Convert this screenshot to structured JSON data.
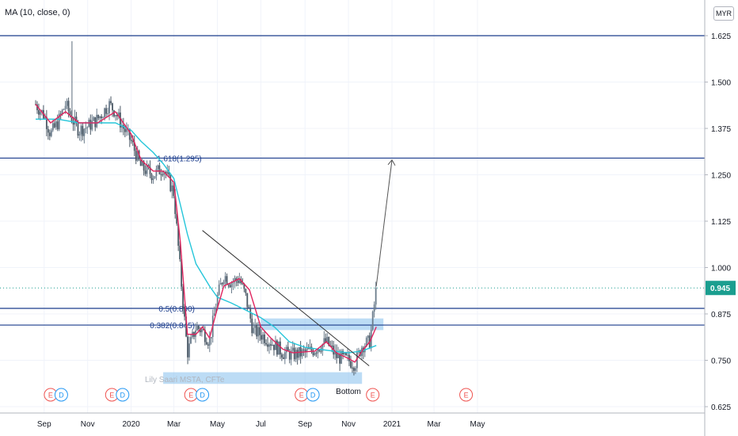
{
  "indicator": {
    "label": "MA (10, close, 0)"
  },
  "currency": {
    "label": "MYR"
  },
  "colors": {
    "up": "#26a69a",
    "down": "#ef5350",
    "candle": "#5b6b7a",
    "ma_fast": "#e0245e",
    "ma_slow": "#26c6da",
    "level_line": "#1b3c8c",
    "price_tag": "#1a9e8f",
    "zone": "#90c4ee",
    "event_e": "#ef5350",
    "event_d": "#2196f3"
  },
  "chart_data": {
    "type": "candlestick",
    "title": "",
    "x_ticks": [
      "Sep",
      "Nov",
      "2020",
      "Mar",
      "May",
      "Jul",
      "Sep",
      "Nov",
      "2021",
      "Mar",
      "May"
    ],
    "y_ticks": [
      "1.625",
      "1.500",
      "1.375",
      "1.250",
      "1.125",
      "1.000",
      "0.875",
      "0.750",
      "0.625"
    ],
    "ylim": [
      0.625,
      1.625
    ],
    "last_price": "0.945",
    "horizontal_levels": [
      1.625,
      1.295,
      0.89,
      0.845
    ],
    "fib_labels": [
      {
        "text": "1.618(1.295)",
        "value": 1.295
      },
      {
        "text": "0.5(0.890)",
        "value": 0.89
      },
      {
        "text": "0.382(0.845)",
        "value": 0.845
      }
    ],
    "annotations": [
      {
        "text": "Lily Saari  MSTA, CFTe"
      },
      {
        "text": "Bottom"
      }
    ],
    "close_series": [
      [
        "2019-08-20",
        1.44
      ],
      [
        "2019-09-01",
        1.41
      ],
      [
        "2019-09-10",
        1.36
      ],
      [
        "2019-09-20",
        1.39
      ],
      [
        "2019-10-01",
        1.44
      ],
      [
        "2019-10-10",
        1.4
      ],
      [
        "2019-10-20",
        1.37
      ],
      [
        "2019-11-01",
        1.38
      ],
      [
        "2019-11-15",
        1.4
      ],
      [
        "2019-12-01",
        1.44
      ],
      [
        "2019-12-10",
        1.42
      ],
      [
        "2019-12-20",
        1.38
      ],
      [
        "2020-01-01",
        1.34
      ],
      [
        "2020-01-15",
        1.27
      ],
      [
        "2020-02-01",
        1.25
      ],
      [
        "2020-02-15",
        1.27
      ],
      [
        "2020-03-01",
        1.2
      ],
      [
        "2020-03-10",
        0.99
      ],
      [
        "2020-03-20",
        0.77
      ],
      [
        "2020-04-01",
        0.84
      ],
      [
        "2020-04-10",
        0.83
      ],
      [
        "2020-04-20",
        0.8
      ],
      [
        "2020-05-01",
        0.92
      ],
      [
        "2020-05-10",
        0.98
      ],
      [
        "2020-05-20",
        0.96
      ],
      [
        "2020-06-01",
        0.97
      ],
      [
        "2020-06-10",
        0.92
      ],
      [
        "2020-06-20",
        0.83
      ],
      [
        "2020-07-01",
        0.82
      ],
      [
        "2020-07-15",
        0.8
      ],
      [
        "2020-08-01",
        0.77
      ],
      [
        "2020-08-15",
        0.765
      ],
      [
        "2020-09-01",
        0.77
      ],
      [
        "2020-09-15",
        0.78
      ],
      [
        "2020-10-01",
        0.8
      ],
      [
        "2020-10-15",
        0.76
      ],
      [
        "2020-11-01",
        0.75
      ],
      [
        "2020-11-10",
        0.74
      ],
      [
        "2020-11-20",
        0.79
      ],
      [
        "2020-12-01",
        0.8
      ],
      [
        "2020-12-10",
        0.945
      ]
    ],
    "ma_fast": [
      [
        "2019-08-20",
        1.44
      ],
      [
        "2019-09-10",
        1.39
      ],
      [
        "2019-10-01",
        1.42
      ],
      [
        "2019-10-20",
        1.39
      ],
      [
        "2019-11-15",
        1.39
      ],
      [
        "2019-12-10",
        1.42
      ],
      [
        "2020-01-01",
        1.36
      ],
      [
        "2020-01-15",
        1.29
      ],
      [
        "2020-02-01",
        1.26
      ],
      [
        "2020-02-15",
        1.26
      ],
      [
        "2020-03-01",
        1.23
      ],
      [
        "2020-03-10",
        1.07
      ],
      [
        "2020-03-20",
        0.82
      ],
      [
        "2020-04-01",
        0.82
      ],
      [
        "2020-04-10",
        0.84
      ],
      [
        "2020-04-20",
        0.81
      ],
      [
        "2020-05-01",
        0.89
      ],
      [
        "2020-05-10",
        0.95
      ],
      [
        "2020-06-01",
        0.97
      ],
      [
        "2020-06-15",
        0.94
      ],
      [
        "2020-07-01",
        0.84
      ],
      [
        "2020-07-15",
        0.81
      ],
      [
        "2020-08-01",
        0.78
      ],
      [
        "2020-08-15",
        0.77
      ],
      [
        "2020-09-15",
        0.775
      ],
      [
        "2020-10-01",
        0.8
      ],
      [
        "2020-10-15",
        0.77
      ],
      [
        "2020-11-01",
        0.755
      ],
      [
        "2020-11-10",
        0.745
      ],
      [
        "2020-11-20",
        0.775
      ],
      [
        "2020-12-01",
        0.8
      ],
      [
        "2020-12-10",
        0.84
      ]
    ],
    "ma_slow": [
      [
        "2019-08-20",
        1.4
      ],
      [
        "2019-09-20",
        1.4
      ],
      [
        "2019-10-20",
        1.39
      ],
      [
        "2019-11-15",
        1.39
      ],
      [
        "2019-12-10",
        1.39
      ],
      [
        "2020-01-01",
        1.37
      ],
      [
        "2020-01-15",
        1.34
      ],
      [
        "2020-02-01",
        1.31
      ],
      [
        "2020-02-15",
        1.28
      ],
      [
        "2020-03-01",
        1.24
      ],
      [
        "2020-03-10",
        1.17
      ],
      [
        "2020-03-20",
        1.09
      ],
      [
        "2020-04-01",
        1.01
      ],
      [
        "2020-04-20",
        0.95
      ],
      [
        "2020-05-01",
        0.92
      ],
      [
        "2020-05-20",
        0.905
      ],
      [
        "2020-06-10",
        0.885
      ],
      [
        "2020-07-01",
        0.865
      ],
      [
        "2020-07-20",
        0.84
      ],
      [
        "2020-08-10",
        0.8
      ],
      [
        "2020-09-01",
        0.785
      ],
      [
        "2020-09-20",
        0.78
      ],
      [
        "2020-10-10",
        0.775
      ],
      [
        "2020-11-01",
        0.77
      ],
      [
        "2020-11-20",
        0.775
      ],
      [
        "2020-12-10",
        0.79
      ]
    ],
    "trendline": [
      [
        "2020-04-10",
        1.1
      ],
      [
        "2020-11-30",
        0.735
      ]
    ],
    "projection_arrow": [
      [
        "2020-12-10",
        0.95
      ],
      [
        "2021-01-01",
        1.29
      ]
    ],
    "zones": [
      {
        "from": "2020-02-15",
        "to": "2020-11-20",
        "low": 0.695,
        "high": 0.705
      },
      {
        "from": "2020-07-01",
        "to": "2020-12-20",
        "low": 0.84,
        "high": 0.85
      }
    ],
    "events": [
      {
        "date": "2019-09-10",
        "type": "E"
      },
      {
        "date": "2019-09-25",
        "type": "D"
      },
      {
        "date": "2019-12-05",
        "type": "E"
      },
      {
        "date": "2019-12-20",
        "type": "D"
      },
      {
        "date": "2020-03-25",
        "type": "E"
      },
      {
        "date": "2020-04-10",
        "type": "D"
      },
      {
        "date": "2020-08-27",
        "type": "E"
      },
      {
        "date": "2020-09-12",
        "type": "D"
      },
      {
        "date": "2020-12-05",
        "type": "E"
      },
      {
        "date": "2021-04-15",
        "type": "E"
      }
    ]
  }
}
